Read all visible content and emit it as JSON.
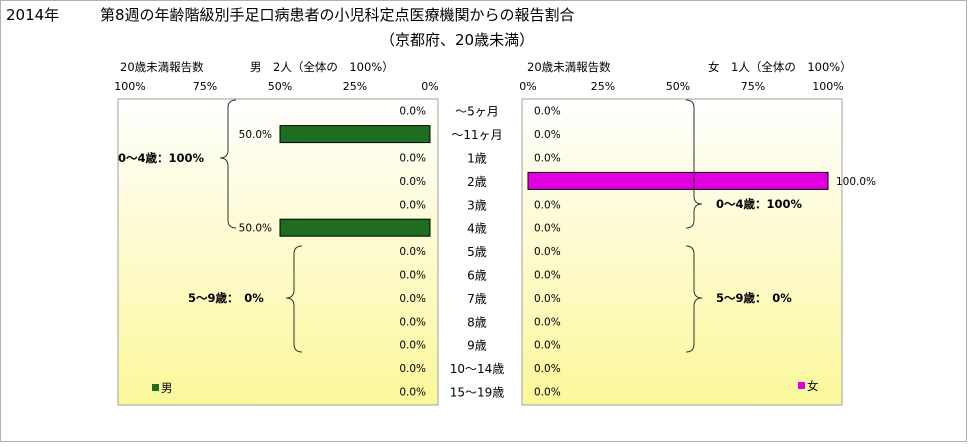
{
  "title": {
    "year": "2014年",
    "main": "第8週の年齢階級別手足口病患者の小児科定点医療機関からの報告割合",
    "subtitle": "（京都府、20歳未満）"
  },
  "colors": {
    "male": "#1f6e1f",
    "female": "#e000e0",
    "panel_top": "#ffffff",
    "panel_bottom": "#fbf79a"
  },
  "chart_data": {
    "type": "bar",
    "orientation": "horizontal-back-to-back",
    "categories": [
      "～5ヶ月",
      "～11ヶ月",
      "1歳",
      "2歳",
      "3歳",
      "4歳",
      "5歳",
      "6歳",
      "7歳",
      "8歳",
      "9歳",
      "10～14歳",
      "15～19歳"
    ],
    "xlim": [
      0,
      100
    ],
    "x_ticks": [
      "100%",
      "75%",
      "50%",
      "25%",
      "0%"
    ],
    "x_ticks_right": [
      "0%",
      "25%",
      "50%",
      "75%",
      "100%"
    ],
    "series": [
      {
        "name": "男",
        "side": "left",
        "header": "20歳未満報告数",
        "count_label": "男　2人（全体の　100%）",
        "values": [
          0,
          50,
          0,
          0,
          0,
          50,
          0,
          0,
          0,
          0,
          0,
          0,
          0
        ],
        "labels": [
          "0.0%",
          "50.0%",
          "0.0%",
          "0.0%",
          "0.0%",
          "50.0%",
          "0.0%",
          "0.0%",
          "0.0%",
          "0.0%",
          "0.0%",
          "0.0%",
          "0.0%"
        ],
        "groups": [
          {
            "label": "0～4歳：100%"
          },
          {
            "label": "5～9歳：　0%"
          }
        ]
      },
      {
        "name": "女",
        "side": "right",
        "header": "20歳未満報告数",
        "count_label": "女　1人（全体の　100%）",
        "values": [
          0,
          0,
          0,
          100,
          0,
          0,
          0,
          0,
          0,
          0,
          0,
          0,
          0
        ],
        "labels": [
          "0.0%",
          "0.0%",
          "0.0%",
          "100.0%",
          "0.0%",
          "0.0%",
          "0.0%",
          "0.0%",
          "0.0%",
          "0.0%",
          "0.0%",
          "0.0%",
          "0.0%"
        ],
        "groups": [
          {
            "label": "0～4歳：100%"
          },
          {
            "label": "5～9歳：　0%"
          }
        ]
      }
    ]
  }
}
